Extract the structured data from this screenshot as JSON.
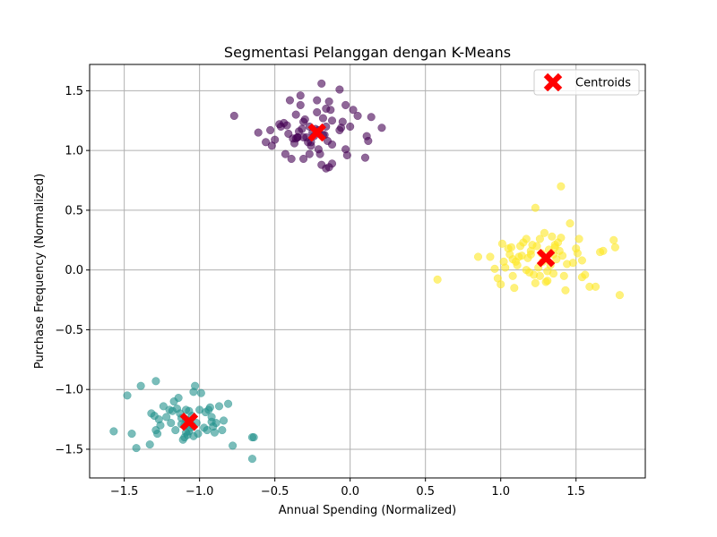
{
  "chart_data": {
    "type": "scatter",
    "title": "Segmentasi Pelanggan dengan K-Means",
    "xlabel": "Annual Spending (Normalized)",
    "ylabel": "Purchase Frequency (Normalized)",
    "xlim": [
      -1.73,
      1.96
    ],
    "ylim": [
      -1.74,
      1.72
    ],
    "xticks": [
      -1.5,
      -1.0,
      -0.5,
      0.0,
      0.5,
      1.0,
      1.5
    ],
    "xtick_labels": [
      "−1.5",
      "−1.0",
      "−0.5",
      "0.0",
      "0.5",
      "1.0",
      "1.5"
    ],
    "yticks": [
      -1.5,
      -1.0,
      -0.5,
      0.0,
      0.5,
      1.0,
      1.5
    ],
    "ytick_labels": [
      "−1.5",
      "−1.0",
      "−0.5",
      "0.0",
      "0.5",
      "1.0",
      "1.5"
    ],
    "grid": true,
    "legend": {
      "position": "top-right",
      "entries": [
        "Centroids"
      ]
    },
    "cluster_colors": [
      "#440154",
      "#21918c",
      "#fde725"
    ],
    "centroid_color": "#ff0000",
    "clusters": [
      {
        "color": "#440154",
        "points": [
          [
            -0.77,
            1.29
          ],
          [
            -0.61,
            1.15
          ],
          [
            -0.56,
            1.07
          ],
          [
            -0.53,
            1.17
          ],
          [
            -0.52,
            1.04
          ],
          [
            -0.5,
            1.09
          ],
          [
            -0.46,
            1.2
          ],
          [
            -0.44,
            1.23
          ],
          [
            -0.42,
            1.21
          ],
          [
            -0.41,
            1.14
          ],
          [
            -0.4,
            1.42
          ],
          [
            -0.38,
            1.1
          ],
          [
            -0.37,
            1.06
          ],
          [
            -0.36,
            1.3
          ],
          [
            -0.35,
            1.11
          ],
          [
            -0.34,
            1.16
          ],
          [
            -0.33,
            1.46
          ],
          [
            -0.32,
            1.18
          ],
          [
            -0.31,
            1.24
          ],
          [
            -0.31,
            1.11
          ],
          [
            -0.3,
            1.26
          ],
          [
            -0.29,
            1.11
          ],
          [
            -0.28,
            1.07
          ],
          [
            -0.27,
            1.2
          ],
          [
            -0.26,
            1.04
          ],
          [
            -0.25,
            1.15
          ],
          [
            -0.24,
            1.12
          ],
          [
            -0.23,
            1.18
          ],
          [
            -0.22,
            1.42
          ],
          [
            -0.22,
            1.32
          ],
          [
            -0.21,
            1.01
          ],
          [
            -0.2,
            0.97
          ],
          [
            -0.19,
            1.56
          ],
          [
            -0.19,
            0.88
          ],
          [
            -0.18,
            1.27
          ],
          [
            -0.17,
            1.13
          ],
          [
            -0.16,
            1.2
          ],
          [
            -0.16,
            0.85
          ],
          [
            -0.15,
            1.08
          ],
          [
            -0.14,
            1.41
          ],
          [
            -0.13,
            1.34
          ],
          [
            -0.12,
            1.05
          ],
          [
            -0.12,
            0.89
          ],
          [
            -0.07,
            1.51
          ],
          [
            -0.06,
            1.19
          ],
          [
            -0.05,
            1.24
          ],
          [
            -0.03,
            1.38
          ],
          [
            -0.03,
            1.01
          ],
          [
            0.0,
            1.2
          ],
          [
            0.02,
            1.34
          ],
          [
            0.05,
            1.29
          ],
          [
            0.1,
            0.94
          ],
          [
            0.11,
            1.12
          ],
          [
            0.12,
            1.08
          ],
          [
            0.14,
            1.28
          ],
          [
            0.21,
            1.19
          ],
          [
            -0.31,
            0.93
          ],
          [
            -0.43,
            0.97
          ],
          [
            -0.39,
            0.93
          ],
          [
            -0.35,
            1.11
          ],
          [
            -0.18,
            1.13
          ],
          [
            -0.12,
            1.25
          ],
          [
            -0.21,
            1.17
          ],
          [
            -0.14,
            0.86
          ],
          [
            -0.47,
            1.22
          ],
          [
            -0.26,
            1.07
          ],
          [
            -0.33,
            1.38
          ],
          [
            -0.16,
            1.35
          ],
          [
            -0.27,
            0.97
          ],
          [
            -0.07,
            1.17
          ],
          [
            -0.02,
            0.96
          ],
          [
            -0.36,
            1.1
          ]
        ]
      },
      {
        "color": "#21918c",
        "points": [
          [
            -1.57,
            -1.35
          ],
          [
            -1.48,
            -1.05
          ],
          [
            -1.45,
            -1.37
          ],
          [
            -1.42,
            -1.49
          ],
          [
            -1.39,
            -0.97
          ],
          [
            -1.33,
            -1.46
          ],
          [
            -1.32,
            -1.2
          ],
          [
            -1.3,
            -1.22
          ],
          [
            -1.29,
            -0.93
          ],
          [
            -1.29,
            -1.34
          ],
          [
            -1.28,
            -1.37
          ],
          [
            -1.27,
            -1.25
          ],
          [
            -1.26,
            -1.3
          ],
          [
            -1.24,
            -1.14
          ],
          [
            -1.22,
            -1.23
          ],
          [
            -1.2,
            -1.17
          ],
          [
            -1.18,
            -1.18
          ],
          [
            -1.17,
            -1.1
          ],
          [
            -1.16,
            -1.34
          ],
          [
            -1.15,
            -1.16
          ],
          [
            -1.14,
            -1.07
          ],
          [
            -1.13,
            -1.2
          ],
          [
            -1.12,
            -1.29
          ],
          [
            -1.11,
            -1.42
          ],
          [
            -1.1,
            -1.4
          ],
          [
            -1.1,
            -1.3
          ],
          [
            -1.09,
            -1.25
          ],
          [
            -1.09,
            -1.17
          ],
          [
            -1.08,
            -1.38
          ],
          [
            -1.07,
            -1.35
          ],
          [
            -1.06,
            -1.32
          ],
          [
            -1.05,
            -1.22
          ],
          [
            -1.04,
            -1.39
          ],
          [
            -1.04,
            -1.02
          ],
          [
            -1.03,
            -0.97
          ],
          [
            -1.02,
            -1.28
          ],
          [
            -1.01,
            -1.37
          ],
          [
            -1.0,
            -1.17
          ],
          [
            -0.99,
            -1.03
          ],
          [
            -0.97,
            -1.32
          ],
          [
            -0.96,
            -1.19
          ],
          [
            -0.95,
            -1.34
          ],
          [
            -0.94,
            -1.17
          ],
          [
            -0.93,
            -1.15
          ],
          [
            -0.92,
            -1.23
          ],
          [
            -0.92,
            -1.27
          ],
          [
            -0.91,
            -1.31
          ],
          [
            -0.9,
            -1.36
          ],
          [
            -0.89,
            -1.28
          ],
          [
            -0.87,
            -1.14
          ],
          [
            -0.85,
            -1.34
          ],
          [
            -0.84,
            -1.26
          ],
          [
            -0.81,
            -1.12
          ],
          [
            -0.78,
            -1.47
          ],
          [
            -0.65,
            -1.4
          ],
          [
            -0.64,
            -1.4
          ],
          [
            -0.65,
            -1.58
          ],
          [
            -1.05,
            -1.3
          ],
          [
            -1.12,
            -1.24
          ],
          [
            -1.19,
            -1.28
          ],
          [
            -1.07,
            -1.18
          ],
          [
            -1.09,
            -1.36
          ]
        ]
      },
      {
        "color": "#fde725",
        "points": [
          [
            0.58,
            -0.08
          ],
          [
            0.85,
            0.11
          ],
          [
            0.93,
            0.11
          ],
          [
            0.96,
            0.01
          ],
          [
            0.98,
            -0.07
          ],
          [
            1.0,
            -0.12
          ],
          [
            1.01,
            0.22
          ],
          [
            1.02,
            0.07
          ],
          [
            1.03,
            0.02
          ],
          [
            1.05,
            0.18
          ],
          [
            1.06,
            0.13
          ],
          [
            1.07,
            0.19
          ],
          [
            1.08,
            0.09
          ],
          [
            1.08,
            -0.05
          ],
          [
            1.09,
            -0.15
          ],
          [
            1.1,
            0.07
          ],
          [
            1.11,
            0.04
          ],
          [
            1.12,
            0.11
          ],
          [
            1.13,
            0.2
          ],
          [
            1.14,
            0.12
          ],
          [
            1.15,
            0.23
          ],
          [
            1.17,
            0.26
          ],
          [
            1.18,
            0.1
          ],
          [
            1.19,
            -0.02
          ],
          [
            1.2,
            0.16
          ],
          [
            1.21,
            0.21
          ],
          [
            1.22,
            -0.04
          ],
          [
            1.23,
            0.52
          ],
          [
            1.23,
            -0.11
          ],
          [
            1.24,
            0.2
          ],
          [
            1.25,
            0.02
          ],
          [
            1.26,
            -0.05
          ],
          [
            1.27,
            0.14
          ],
          [
            1.28,
            0.07
          ],
          [
            1.29,
            0.31
          ],
          [
            1.3,
            -0.1
          ],
          [
            1.31,
            -0.01
          ],
          [
            1.32,
            0.17
          ],
          [
            1.33,
            0.04
          ],
          [
            1.34,
            0.28
          ],
          [
            1.35,
            0.13
          ],
          [
            1.35,
            -0.03
          ],
          [
            1.36,
            0.21
          ],
          [
            1.37,
            0.09
          ],
          [
            1.38,
            0.23
          ],
          [
            1.39,
            0.16
          ],
          [
            1.4,
            0.7
          ],
          [
            1.4,
            0.27
          ],
          [
            1.41,
            0.12
          ],
          [
            1.42,
            -0.05
          ],
          [
            1.43,
            -0.17
          ],
          [
            1.46,
            0.39
          ],
          [
            1.48,
            0.06
          ],
          [
            1.5,
            0.18
          ],
          [
            1.51,
            0.14
          ],
          [
            1.52,
            0.26
          ],
          [
            1.54,
            -0.06
          ],
          [
            1.54,
            0.08
          ],
          [
            1.56,
            -0.04
          ],
          [
            1.59,
            -0.14
          ],
          [
            1.63,
            -0.14
          ],
          [
            1.66,
            0.15
          ],
          [
            1.68,
            0.16
          ],
          [
            1.75,
            0.25
          ],
          [
            1.76,
            0.19
          ],
          [
            1.79,
            -0.21
          ],
          [
            1.31,
            -0.09
          ],
          [
            1.17,
            0.0
          ],
          [
            1.26,
            0.26
          ],
          [
            1.36,
            0.19
          ],
          [
            1.2,
            0.13
          ],
          [
            1.44,
            0.05
          ]
        ]
      }
    ],
    "centroids": [
      [
        -0.22,
        1.15
      ],
      [
        -1.07,
        -1.27
      ],
      [
        1.3,
        0.1
      ]
    ]
  }
}
